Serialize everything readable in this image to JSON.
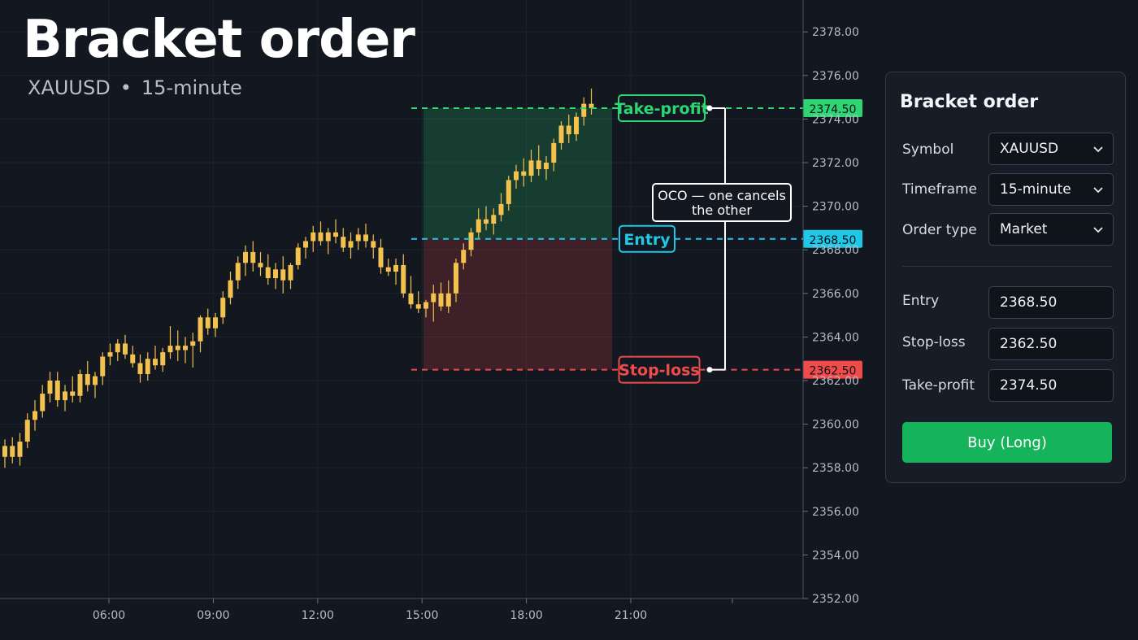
{
  "header": {
    "title": "Bracket order",
    "symbol": "XAUUSD",
    "separator": "•",
    "timeframe": "15-minute"
  },
  "chart_data": {
    "type": "candlestick",
    "x_ticks": [
      "06:00",
      "09:00",
      "12:00",
      "15:00",
      "18:00",
      "21:00"
    ],
    "y_ticks": [
      "2352.00",
      "2354.00",
      "2356.00",
      "2358.00",
      "2360.00",
      "2362.00",
      "2364.00",
      "2366.00",
      "2368.00",
      "2370.00",
      "2372.00",
      "2374.00",
      "2376.00",
      "2378.00"
    ],
    "ylim": [
      2352,
      2378.6
    ],
    "grid": true,
    "candles": [
      [
        2358.5,
        2359.3,
        2358.0,
        2359.0
      ],
      [
        2359.0,
        2359.4,
        2358.2,
        2358.5
      ],
      [
        2358.5,
        2359.6,
        2358.1,
        2359.2
      ],
      [
        2359.2,
        2360.5,
        2358.9,
        2360.2
      ],
      [
        2360.2,
        2361.1,
        2359.7,
        2360.6
      ],
      [
        2360.6,
        2361.8,
        2360.3,
        2361.4
      ],
      [
        2361.4,
        2362.4,
        2361.0,
        2362.0
      ],
      [
        2362.0,
        2362.4,
        2360.8,
        2361.1
      ],
      [
        2361.1,
        2361.8,
        2360.6,
        2361.5
      ],
      [
        2361.5,
        2362.2,
        2361.0,
        2361.3
      ],
      [
        2361.3,
        2362.5,
        2361.0,
        2362.3
      ],
      [
        2362.3,
        2362.9,
        2361.5,
        2361.8
      ],
      [
        2361.8,
        2362.4,
        2361.2,
        2362.2
      ],
      [
        2362.2,
        2363.3,
        2361.8,
        2363.1
      ],
      [
        2363.1,
        2363.7,
        2362.7,
        2363.3
      ],
      [
        2363.3,
        2363.9,
        2362.9,
        2363.7
      ],
      [
        2363.7,
        2364.1,
        2363.0,
        2363.2
      ],
      [
        2363.2,
        2363.6,
        2362.6,
        2362.8
      ],
      [
        2362.8,
        2363.2,
        2361.9,
        2362.3
      ],
      [
        2362.3,
        2363.3,
        2362.0,
        2363.0
      ],
      [
        2363.0,
        2363.6,
        2362.5,
        2362.7
      ],
      [
        2362.7,
        2363.5,
        2362.4,
        2363.3
      ],
      [
        2363.3,
        2364.5,
        2363.0,
        2363.6
      ],
      [
        2363.6,
        2364.3,
        2362.9,
        2363.4
      ],
      [
        2363.4,
        2364.0,
        2362.8,
        2363.6
      ],
      [
        2363.6,
        2364.2,
        2362.6,
        2363.8
      ],
      [
        2363.8,
        2365.0,
        2363.3,
        2364.9
      ],
      [
        2364.9,
        2365.3,
        2364.1,
        2364.4
      ],
      [
        2364.4,
        2365.1,
        2364.0,
        2364.9
      ],
      [
        2364.9,
        2366.1,
        2364.6,
        2365.8
      ],
      [
        2365.8,
        2367.0,
        2365.5,
        2366.6
      ],
      [
        2366.6,
        2367.7,
        2366.2,
        2367.4
      ],
      [
        2367.4,
        2368.2,
        2366.8,
        2367.9
      ],
      [
        2367.9,
        2368.4,
        2367.0,
        2367.4
      ],
      [
        2367.4,
        2367.9,
        2366.8,
        2367.2
      ],
      [
        2367.2,
        2367.8,
        2366.4,
        2366.7
      ],
      [
        2366.7,
        2367.4,
        2366.2,
        2367.1
      ],
      [
        2367.1,
        2367.7,
        2366.0,
        2366.6
      ],
      [
        2366.6,
        2367.4,
        2366.2,
        2367.3
      ],
      [
        2367.3,
        2368.3,
        2367.1,
        2368.1
      ],
      [
        2368.1,
        2368.6,
        2367.6,
        2368.4
      ],
      [
        2368.4,
        2369.1,
        2367.9,
        2368.8
      ],
      [
        2368.8,
        2369.3,
        2368.2,
        2368.4
      ],
      [
        2368.4,
        2369.0,
        2367.8,
        2368.8
      ],
      [
        2368.8,
        2369.4,
        2368.3,
        2368.6
      ],
      [
        2368.6,
        2369.0,
        2367.9,
        2368.1
      ],
      [
        2368.1,
        2368.8,
        2367.6,
        2368.4
      ],
      [
        2368.4,
        2369.0,
        2368.0,
        2368.7
      ],
      [
        2368.7,
        2369.2,
        2368.1,
        2368.4
      ],
      [
        2368.4,
        2368.7,
        2367.6,
        2368.1
      ],
      [
        2368.1,
        2368.5,
        2366.9,
        2367.2
      ],
      [
        2367.2,
        2367.6,
        2366.8,
        2367.0
      ],
      [
        2367.0,
        2367.6,
        2366.4,
        2367.3
      ],
      [
        2367.3,
        2367.8,
        2365.8,
        2366.0
      ],
      [
        2366.0,
        2366.8,
        2365.3,
        2365.5
      ],
      [
        2365.5,
        2366.1,
        2365.1,
        2365.3
      ],
      [
        2365.3,
        2365.7,
        2364.9,
        2365.6
      ],
      [
        2365.6,
        2366.4,
        2364.7,
        2366.0
      ],
      [
        2366.0,
        2366.5,
        2365.2,
        2365.4
      ],
      [
        2365.4,
        2366.6,
        2365.1,
        2366.0
      ],
      [
        2366.0,
        2367.6,
        2365.6,
        2367.4
      ],
      [
        2367.4,
        2368.3,
        2367.1,
        2368.0
      ],
      [
        2368.0,
        2369.0,
        2367.7,
        2368.8
      ],
      [
        2368.8,
        2369.9,
        2368.5,
        2369.4
      ],
      [
        2369.4,
        2370.0,
        2368.9,
        2369.2
      ],
      [
        2369.2,
        2369.9,
        2368.7,
        2369.6
      ],
      [
        2369.6,
        2370.6,
        2369.3,
        2370.1
      ],
      [
        2370.1,
        2371.4,
        2369.8,
        2371.2
      ],
      [
        2371.2,
        2371.9,
        2370.8,
        2371.6
      ],
      [
        2371.6,
        2372.2,
        2370.9,
        2371.4
      ],
      [
        2371.4,
        2372.6,
        2371.1,
        2372.1
      ],
      [
        2372.1,
        2372.8,
        2371.4,
        2371.7
      ],
      [
        2371.7,
        2372.3,
        2371.2,
        2372.0
      ],
      [
        2372.0,
        2373.1,
        2371.6,
        2372.9
      ],
      [
        2372.9,
        2373.9,
        2372.6,
        2373.7
      ],
      [
        2373.7,
        2374.2,
        2372.9,
        2373.3
      ],
      [
        2373.3,
        2374.3,
        2373.0,
        2374.1
      ],
      [
        2374.1,
        2375.0,
        2373.7,
        2374.7
      ],
      [
        2374.7,
        2375.4,
        2374.2,
        2374.5
      ]
    ],
    "levels": [
      {
        "name": "Take-profit",
        "value": 2374.5,
        "label": "2374.50",
        "color": "#2ed573"
      },
      {
        "name": "Entry",
        "value": 2368.5,
        "label": "2368.50",
        "color": "#1ec8e6"
      },
      {
        "name": "Stop-loss",
        "value": 2362.5,
        "label": "2362.50",
        "color": "#ef4b4b"
      }
    ],
    "annotation": "OCO — one cancels the other",
    "candle_color": "#f2c14e"
  },
  "order_panel": {
    "title": "Bracket order",
    "symbol_label": "Symbol",
    "symbol_value": "XAUUSD",
    "timeframe_label": "Timeframe",
    "timeframe_value": "15-minute",
    "order_type_label": "Order type",
    "order_type_value": "Market",
    "entry_label": "Entry",
    "entry_value": "2368.50",
    "stop_loss_label": "Stop-loss",
    "stop_loss_value": "2362.50",
    "take_profit_label": "Take-profit",
    "take_profit_value": "2374.50",
    "buy_button_label": "Buy (Long)",
    "buy_color": "#16b45a",
    "chevron_icon": "chevron-down-icon"
  }
}
